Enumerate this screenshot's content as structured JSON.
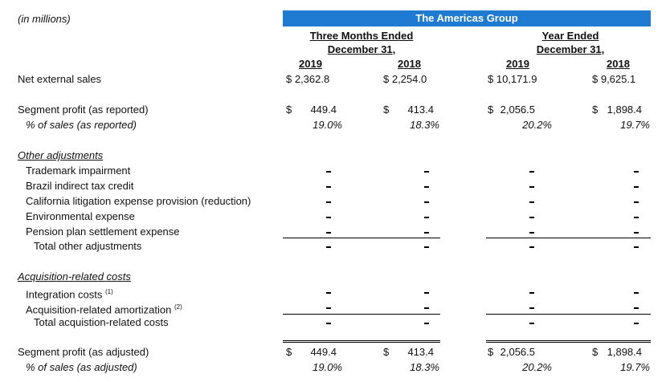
{
  "header": {
    "units": "(in millions)",
    "group": "The Americas Group",
    "three_months_line1": "Three Months Ended",
    "three_months_line2": "December 31,",
    "year_line1": "Year Ended",
    "year_line2": "December 31,",
    "years": [
      "2019",
      "2018",
      "2019",
      "2018"
    ]
  },
  "net_external_sales": {
    "label": "Net external sales",
    "values": [
      "$ 2,362.8",
      "$ 2,254.0",
      "$ 10,171.9",
      "$ 9,625.1"
    ]
  },
  "segment_profit_reported": {
    "label": "Segment profit (as reported)",
    "currency": "$",
    "values": [
      "449.4",
      "413.4",
      "2,056.5",
      "1,898.4"
    ],
    "pct_label": "% of sales (as reported)",
    "pct_values": [
      "19.0%",
      "18.3%",
      "20.2%",
      "19.7%"
    ]
  },
  "other_adjustments": {
    "title": "Other adjustments",
    "items": [
      "Trademark impairment",
      "Brazil indirect tax credit",
      "California litigation expense provision (reduction)",
      "Environmental expense",
      "Pension plan settlement expense"
    ],
    "total_label": "Total other adjustments",
    "dash": "-"
  },
  "acquisition_costs": {
    "title": "Acquisition-related costs",
    "items": [
      {
        "label": "Integration costs",
        "note": "(1)"
      },
      {
        "label": "Acquisition-related amortization",
        "note": "(2)"
      }
    ],
    "total_label": "Total acquistion-related costs"
  },
  "segment_profit_adjusted": {
    "label": "Segment profit (as adjusted)",
    "currency": "$",
    "values": [
      "449.4",
      "413.4",
      "2,056.5",
      "1,898.4"
    ],
    "pct_label": "% of sales (as adjusted)",
    "pct_values": [
      "19.0%",
      "18.3%",
      "20.2%",
      "19.7%"
    ]
  }
}
